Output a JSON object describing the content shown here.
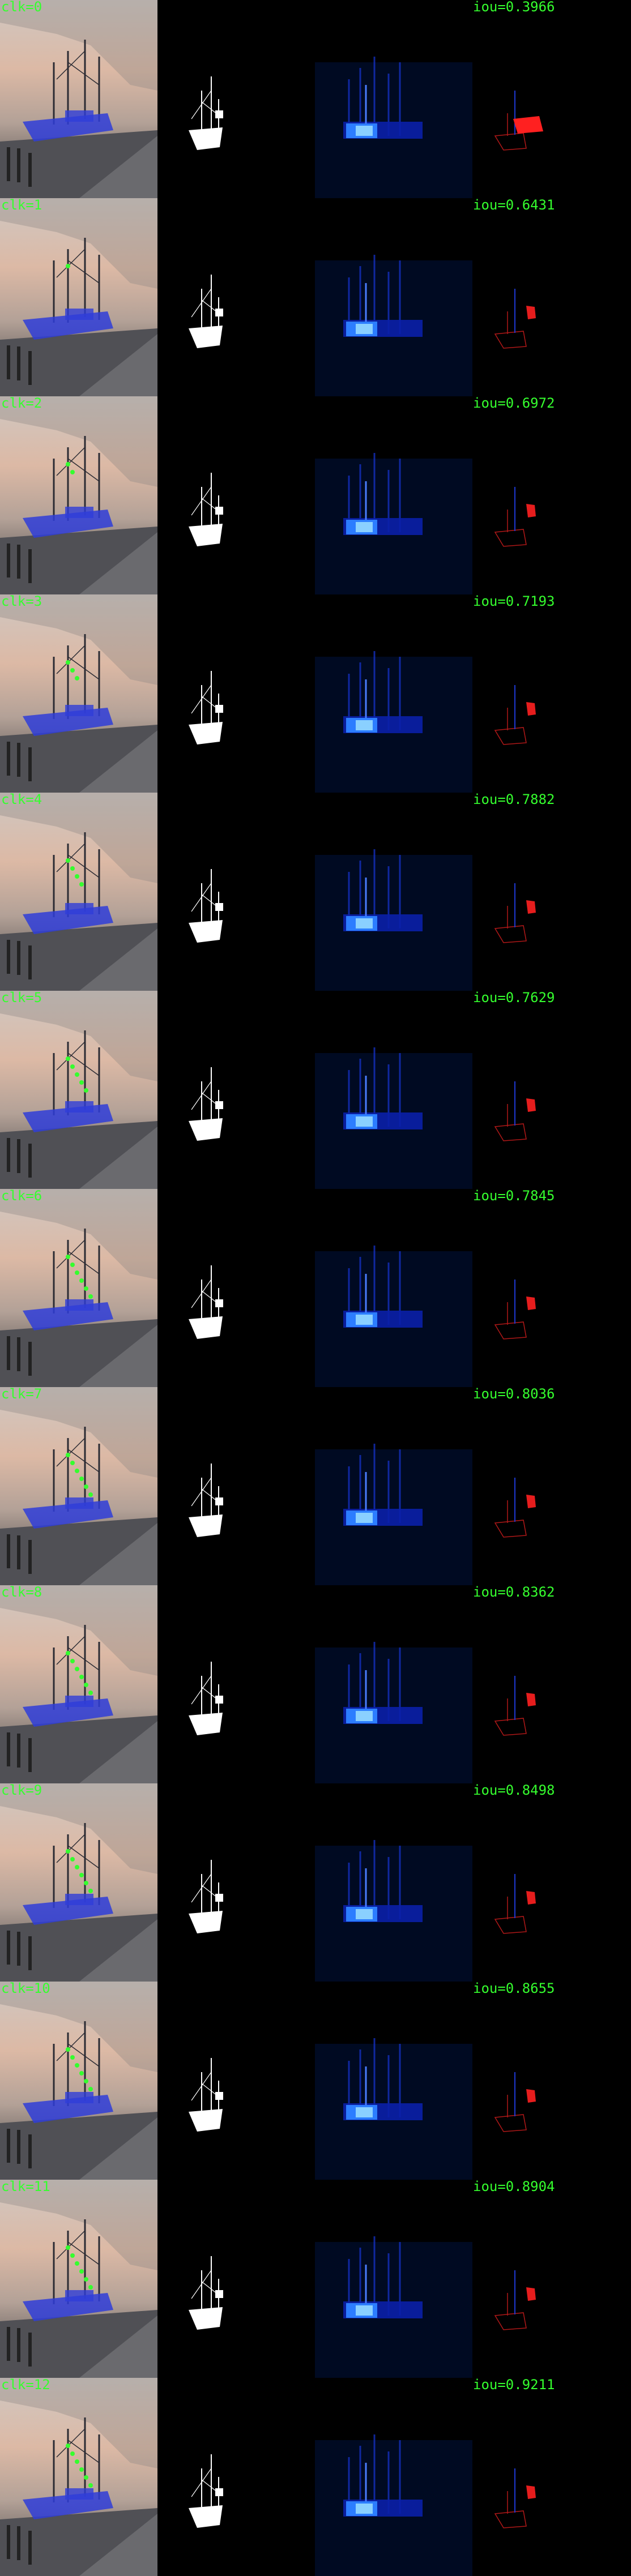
{
  "rows": [
    {
      "clk": "clk=0",
      "iou": "iou=0.3966"
    },
    {
      "clk": "clk=1",
      "iou": "iou=0.6431"
    },
    {
      "clk": "clk=2",
      "iou": "iou=0.6972"
    },
    {
      "clk": "clk=3",
      "iou": "iou=0.7193"
    },
    {
      "clk": "clk=4",
      "iou": "iou=0.7882"
    },
    {
      "clk": "clk=5",
      "iou": "iou=0.7629"
    },
    {
      "clk": "clk=6",
      "iou": "iou=0.7845"
    },
    {
      "clk": "clk=7",
      "iou": "iou=0.8036"
    },
    {
      "clk": "clk=8",
      "iou": "iou=0.8362"
    },
    {
      "clk": "clk=9",
      "iou": "iou=0.8498"
    },
    {
      "clk": "clk=10",
      "iou": "iou=0.8655"
    },
    {
      "clk": "clk=11",
      "iou": "iou=0.8904"
    },
    {
      "clk": "clk=12",
      "iou": "iou=0.9211"
    }
  ],
  "colors": {
    "label": "#35ff2e",
    "mask_overlay": "#2f3dd8",
    "heat": "#2c7dff",
    "error": "#ff2020"
  }
}
